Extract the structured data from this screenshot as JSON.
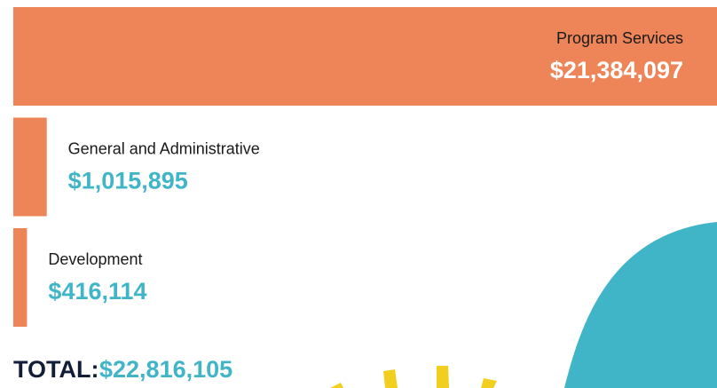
{
  "chart_data": {
    "type": "bar",
    "orientation": "horizontal",
    "categories": [
      "Program Services",
      "General and Administrative",
      "Development"
    ],
    "values": [
      21384097,
      1015895,
      416114
    ],
    "value_labels": [
      "$21,384,097",
      "$1,015,895",
      "$416,114"
    ],
    "color": "#ee8559",
    "value_color": "#41b5c8",
    "total_label": "TOTAL:",
    "total_text": "$22,816,105"
  }
}
